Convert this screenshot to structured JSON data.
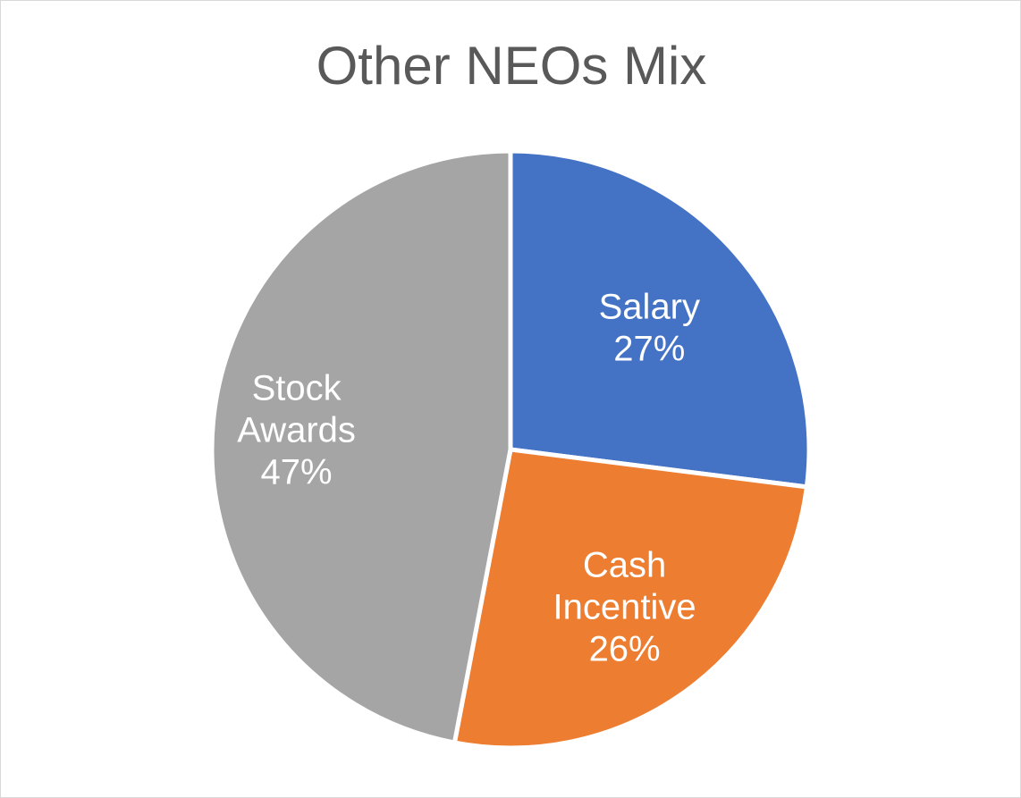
{
  "chart_data": {
    "type": "pie",
    "title": "Other NEOs Mix",
    "categories": [
      "Salary",
      "Cash Incentive",
      "Stock Awards"
    ],
    "values": [
      27,
      26,
      47
    ],
    "unit": "%",
    "colors": [
      "#4472c4",
      "#ed7d31",
      "#a5a5a5"
    ],
    "legend": "none",
    "data_labels": [
      [
        "Salary",
        "27%"
      ],
      [
        "Cash",
        "Incentive",
        "26%"
      ],
      [
        "Stock",
        "Awards",
        "47%"
      ]
    ]
  }
}
